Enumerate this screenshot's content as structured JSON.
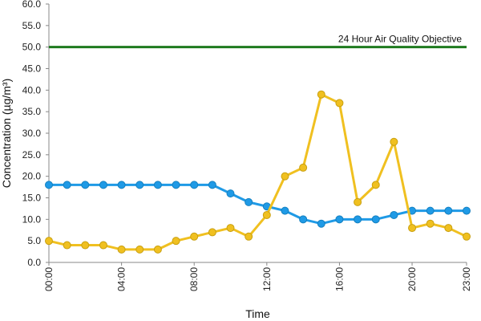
{
  "chart_data": {
    "type": "line",
    "title": "",
    "xlabel": "Time",
    "ylabel": "Concentration (µg/m³)",
    "ylim": [
      0,
      60
    ],
    "y_tick_labels": [
      "0.0",
      "5.0",
      "10.0",
      "15.0",
      "20.0",
      "25.0",
      "30.0",
      "35.0",
      "40.0",
      "45.0",
      "50.0",
      "55.0",
      "60.0"
    ],
    "x_tick_labels": [
      "00:00",
      "04:00",
      "08:00",
      "12:00",
      "16:00",
      "20:00",
      "23:00"
    ],
    "x_tick_hours": [
      0,
      4,
      8,
      12,
      16,
      20,
      23
    ],
    "grid": false,
    "x": [
      0,
      1,
      2,
      3,
      4,
      5,
      6,
      7,
      8,
      9,
      10,
      11,
      12,
      13,
      14,
      15,
      16,
      17,
      18,
      19,
      20,
      21,
      22,
      23
    ],
    "series": [
      {
        "color": "#1f9ae6",
        "values": [
          18,
          18,
          18,
          18,
          18,
          18,
          18,
          18,
          18,
          18,
          16,
          14,
          13,
          12,
          10,
          9,
          10,
          10,
          10,
          11,
          12,
          12,
          12,
          12
        ]
      },
      {
        "color": "#f0c020",
        "values": [
          5,
          4,
          4,
          4,
          3,
          3,
          3,
          5,
          6,
          7,
          8,
          6,
          11,
          20,
          22,
          39,
          37,
          14,
          18,
          28,
          8,
          9,
          8,
          6
        ]
      }
    ],
    "reference_line": {
      "value": 50,
      "label": "24 Hour Air Quality Objective",
      "color": "#1e7a1e"
    }
  }
}
